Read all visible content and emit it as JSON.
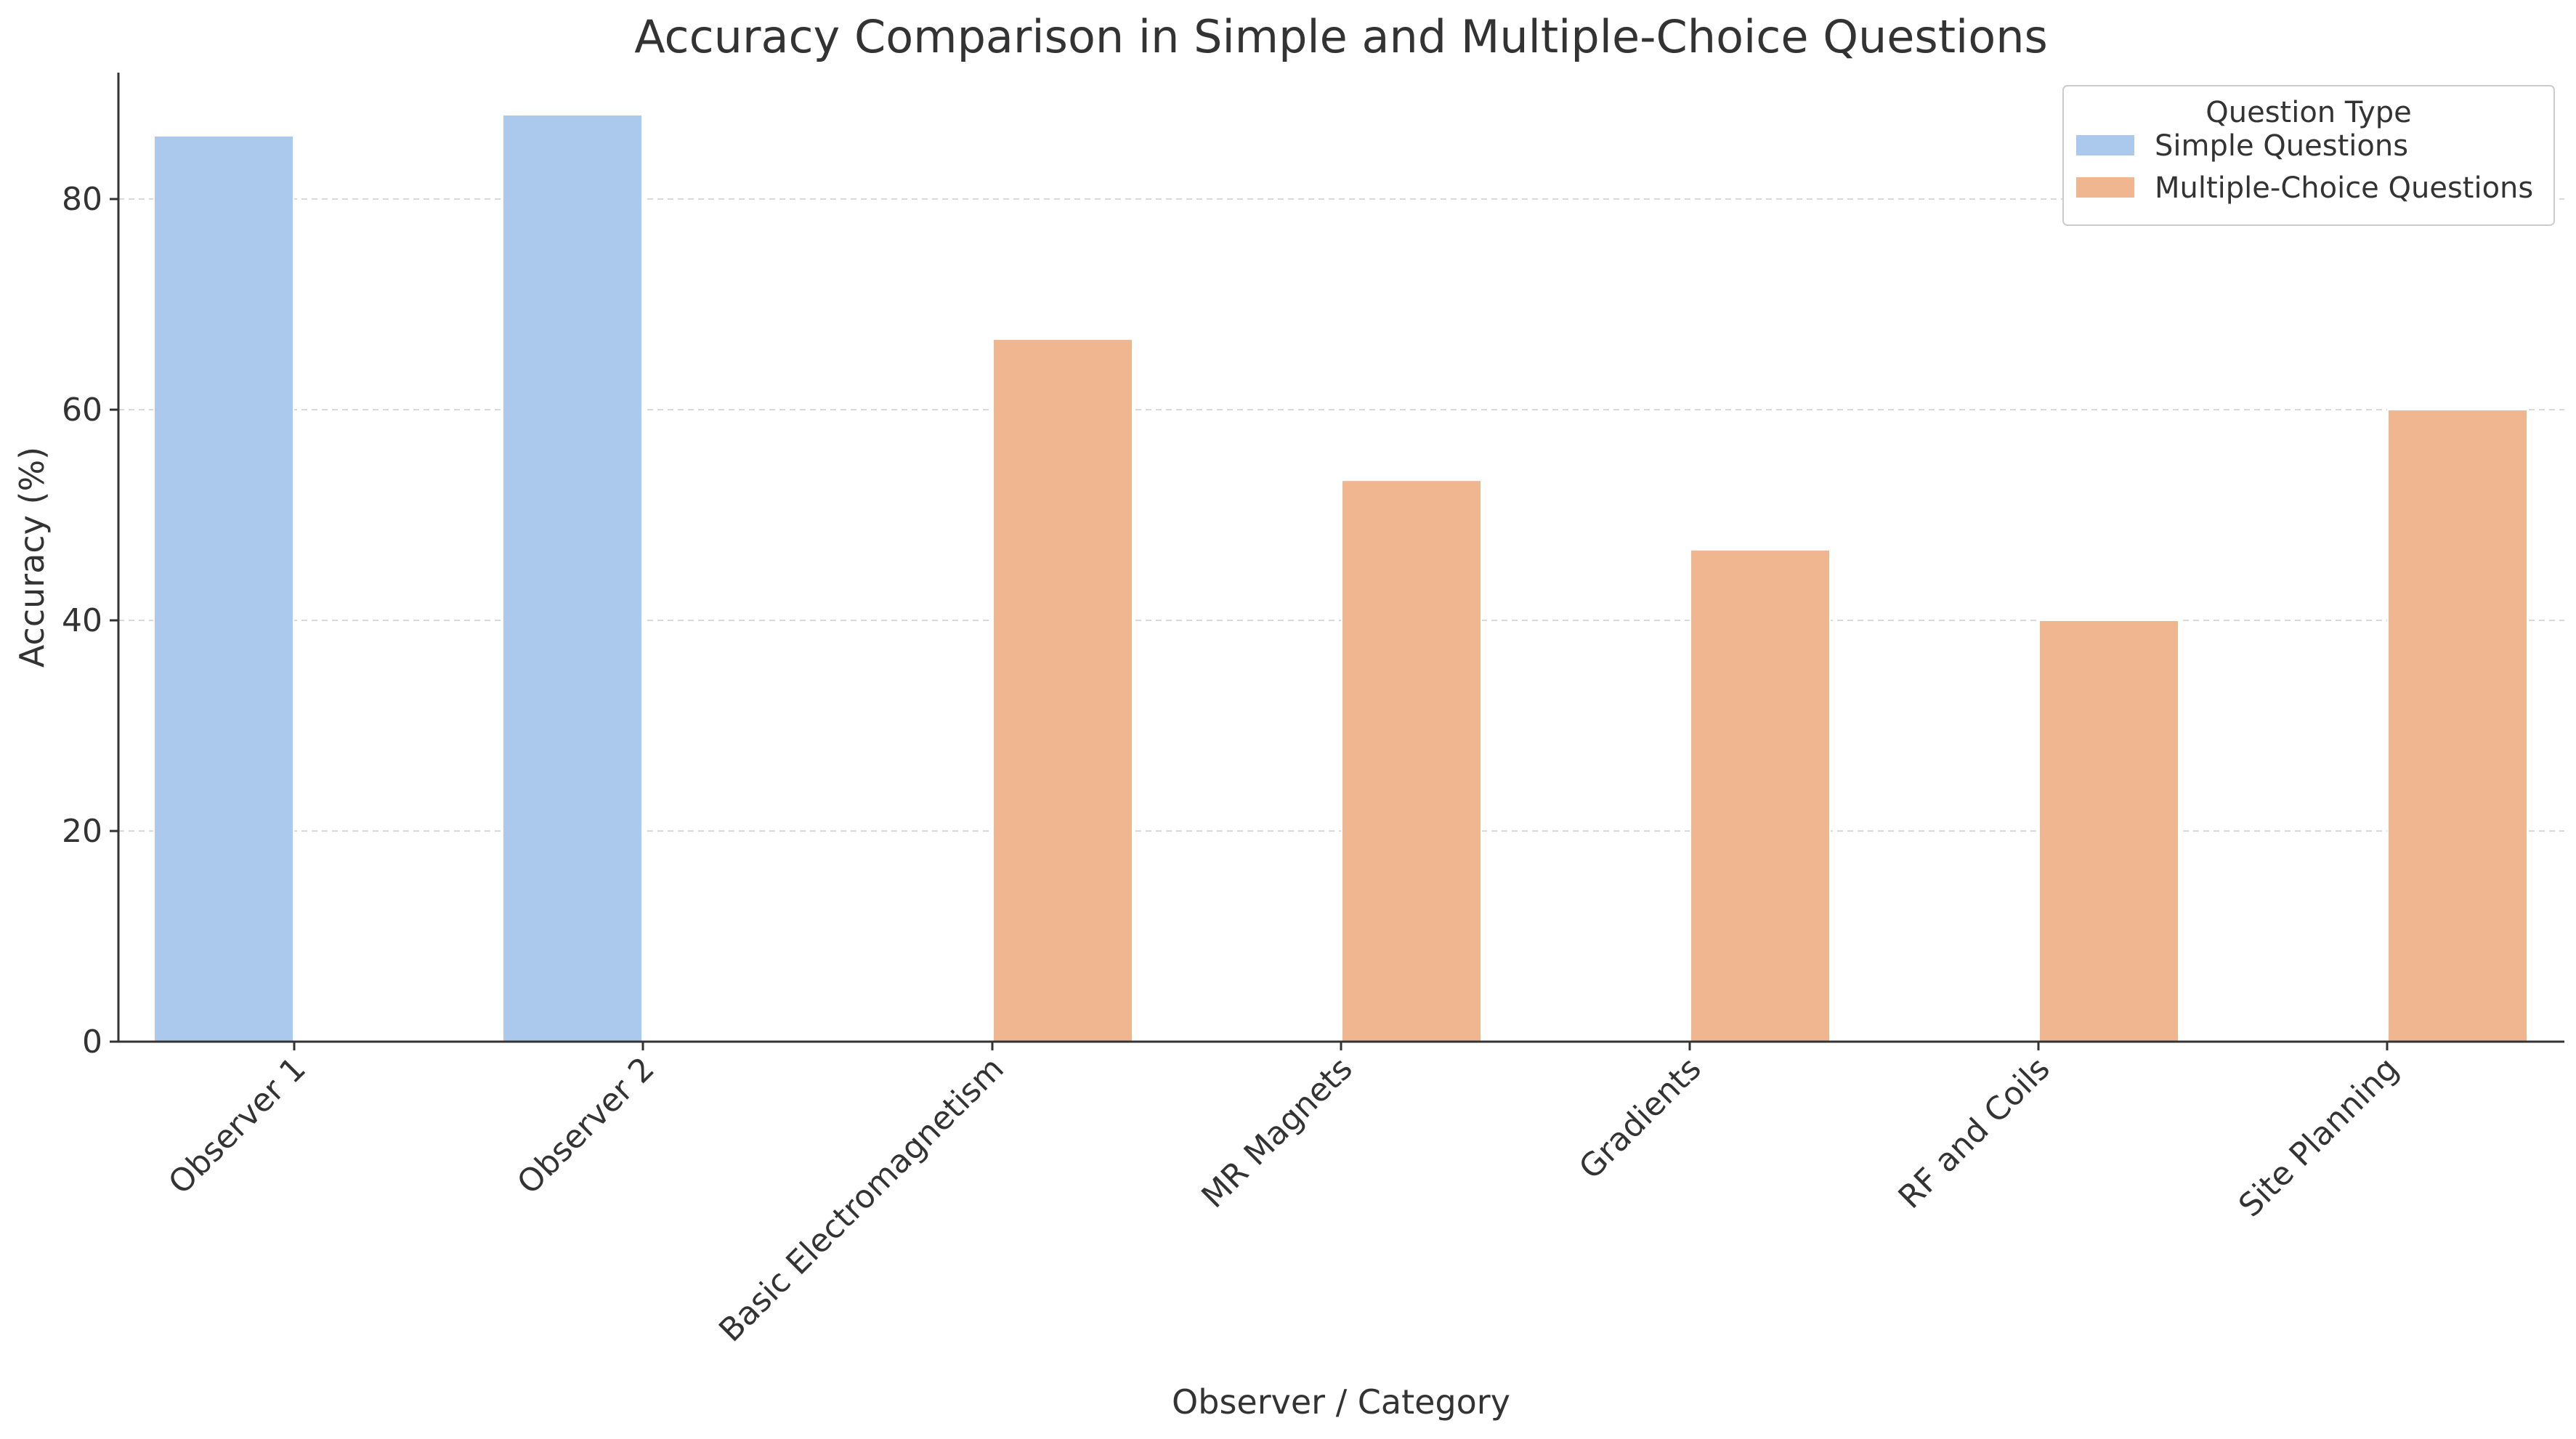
{
  "chart_data": {
    "type": "bar",
    "title": "Accuracy Comparison in Simple and Multiple-Choice Questions",
    "xlabel": "Observer / Category",
    "ylabel": "Accuracy (%)",
    "ylim": [
      0,
      92
    ],
    "yticks": [
      0,
      20,
      40,
      60,
      80
    ],
    "grid": true,
    "legend": {
      "title": "Question Type",
      "placement": "top-right"
    },
    "categories": [
      "Observer 1",
      "Observer 2",
      "Basic Electromagnetism",
      "MR Magnets",
      "Gradients",
      "RF and Coils",
      "Site Planning"
    ],
    "series": [
      {
        "name": "Simple Questions",
        "color": "#abc9ed",
        "values": [
          86,
          88,
          null,
          null,
          null,
          null,
          null
        ]
      },
      {
        "name": "Multiple-Choice Questions",
        "color": "#f0b690",
        "values": [
          null,
          null,
          66.7,
          53.3,
          46.7,
          40,
          60
        ]
      }
    ]
  }
}
